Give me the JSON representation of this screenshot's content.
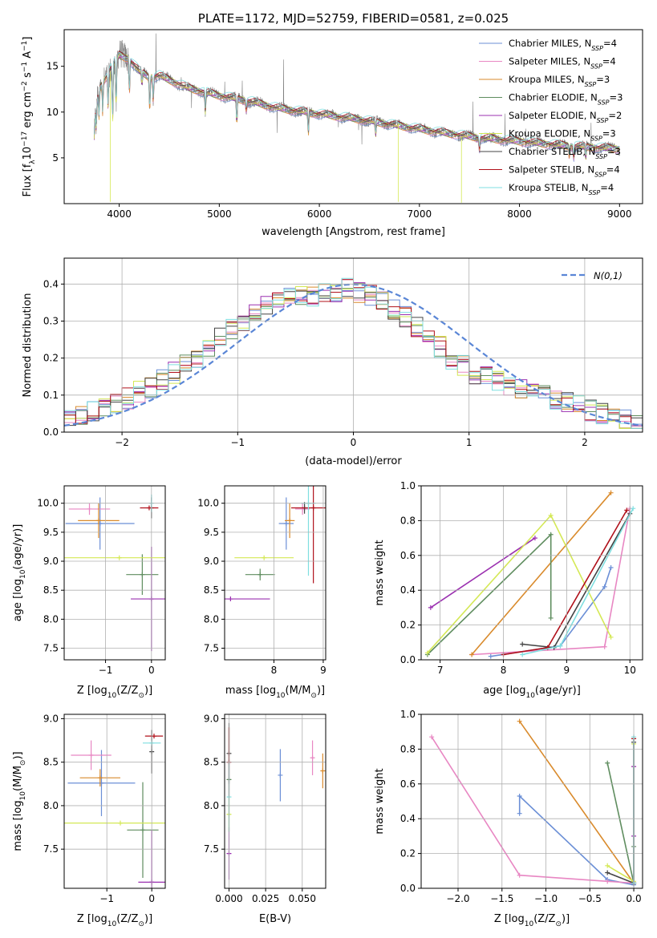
{
  "colors": [
    "#6b8fd6",
    "#e887c3",
    "#d98a2b",
    "#5f8d5f",
    "#9b30b0",
    "#d4e855",
    "#444444",
    "#b0101a",
    "#7fdfe0"
  ],
  "spectrum_color": "#808080",
  "normal_color": "#5a86d6",
  "chart_data": [
    {
      "id": "spectrum",
      "type": "line",
      "title": "PLATE=1172, MJD=52759, FIBERID=0581, z=0.025",
      "xlabel": "wavelength [Angstrom, rest frame]",
      "ylabel_parts": [
        "Flux [f",
        "λ",
        "10",
        "−17",
        " erg cm",
        "−2",
        " s",
        "−1",
        " A",
        "−1",
        "]"
      ],
      "xlim": [
        3450,
        9230
      ],
      "ylim": [
        0,
        19
      ],
      "xticks": [
        4000,
        5000,
        6000,
        7000,
        8000,
        9000
      ],
      "yticks": [
        5,
        10,
        15
      ],
      "legend_placement": "top-right",
      "legend": [
        {
          "text": "Chabrier MILES, N",
          "sub": "SSP",
          "suffix": "=4"
        },
        {
          "text": "Salpeter MILES, N",
          "sub": "SSP",
          "suffix": "=4"
        },
        {
          "text": "Kroupa MILES, N",
          "sub": "SSP",
          "suffix": "=3"
        },
        {
          "text": "Chabrier ELODIE, N",
          "sub": "SSP",
          "suffix": "=3"
        },
        {
          "text": "Salpeter ELODIE, N",
          "sub": "SSP",
          "suffix": "=2"
        },
        {
          "text": "Kroupa ELODIE, N",
          "sub": "SSP",
          "suffix": "=3"
        },
        {
          "text": "Chabrier STELIB, N",
          "sub": "SSP",
          "suffix": "=3"
        },
        {
          "text": "Salpeter STELIB, N",
          "sub": "SSP",
          "suffix": "=4"
        },
        {
          "text": "Kroupa STELIB, N",
          "sub": "SSP",
          "suffix": "=4"
        }
      ],
      "continuum": {
        "x": [
          3750,
          3800,
          3900,
          4000,
          4100,
          4200,
          4300,
          4400,
          4500,
          4700,
          5000,
          5300,
          5600,
          6000,
          6400,
          6800,
          7200,
          7600,
          8000,
          8400,
          8800,
          9000
        ],
        "y": [
          9.0,
          12.5,
          14.5,
          16.2,
          15.8,
          14.5,
          13.8,
          14.0,
          13.5,
          12.6,
          11.8,
          11.2,
          10.4,
          9.8,
          9.2,
          8.5,
          7.8,
          7.2,
          6.8,
          6.4,
          6.1,
          6.0
        ]
      },
      "absorption_lines": [
        {
          "x": 3750,
          "depth": 2.0
        },
        {
          "x": 3770,
          "depth": 2.5
        },
        {
          "x": 3798,
          "depth": 3.0
        },
        {
          "x": 3835,
          "depth": 3.5
        },
        {
          "x": 3889,
          "depth": 4.0
        },
        {
          "x": 3934,
          "depth": 7.0
        },
        {
          "x": 3969,
          "depth": 6.0
        },
        {
          "x": 4102,
          "depth": 4.0
        },
        {
          "x": 4227,
          "depth": 1.5
        },
        {
          "x": 4305,
          "depth": 4.0
        },
        {
          "x": 4340,
          "depth": 3.0
        },
        {
          "x": 4861,
          "depth": 2.5
        },
        {
          "x": 5175,
          "depth": 3.0
        },
        {
          "x": 5270,
          "depth": 1.2
        },
        {
          "x": 5890,
          "depth": 2.5
        },
        {
          "x": 6563,
          "depth": 1.5
        },
        {
          "x": 7600,
          "depth": 1.5
        },
        {
          "x": 8498,
          "depth": 1.2
        },
        {
          "x": 8542,
          "depth": 1.5
        },
        {
          "x": 8662,
          "depth": 1.3
        }
      ]
    },
    {
      "id": "residuals",
      "type": "bar",
      "xlabel": "(data-model)/error",
      "ylabel": "Normed distribution",
      "xlim": [
        -2.5,
        2.5
      ],
      "ylim": [
        0,
        0.47
      ],
      "xticks": [
        -2,
        -1,
        0,
        1,
        2
      ],
      "xtick_labels": [
        "−2",
        "−1",
        "0",
        "1",
        "2"
      ],
      "yticks": [
        0.0,
        0.1,
        0.2,
        0.3,
        0.4
      ],
      "ytick_labels": [
        "0.0",
        "0.1",
        "0.2",
        "0.3",
        "0.4"
      ],
      "bin_width": 0.1,
      "n_bins": 50,
      "base": [
        0.04,
        0.05,
        0.06,
        0.07,
        0.08,
        0.09,
        0.11,
        0.12,
        0.14,
        0.16,
        0.18,
        0.2,
        0.23,
        0.26,
        0.28,
        0.3,
        0.32,
        0.34,
        0.35,
        0.36,
        0.37,
        0.37,
        0.38,
        0.38,
        0.39,
        0.38,
        0.37,
        0.35,
        0.33,
        0.31,
        0.28,
        0.26,
        0.23,
        0.2,
        0.18,
        0.16,
        0.15,
        0.14,
        0.13,
        0.12,
        0.11,
        0.1,
        0.09,
        0.08,
        0.07,
        0.06,
        0.05,
        0.04,
        0.03,
        0.02
      ],
      "legend": "N(0,1)",
      "legend_placement": "top-right"
    },
    {
      "id": "age-vs-Z",
      "type": "scatter",
      "xlabel_parts": [
        "Z [log",
        "10",
        "(Z/Z",
        "⊙",
        ")]"
      ],
      "ylabel_parts": [
        "age  [log",
        "10",
        "(age/yr)]"
      ],
      "xlim": [
        -1.9,
        0.3
      ],
      "ylim": [
        7.3,
        10.3
      ],
      "xticks": [
        -1,
        0
      ],
      "xtick_labels": [
        "−1",
        "0"
      ],
      "yticks": [
        7.5,
        8.0,
        8.5,
        9.0,
        9.5,
        10.0
      ],
      "ytick_labels": [
        "7.5",
        "8.0",
        "8.5",
        "9.0",
        "9.5",
        "10.0"
      ],
      "points": [
        {
          "s": 0,
          "x": -1.12,
          "xerr": 0.75,
          "y": 9.65,
          "yerr": 0.45
        },
        {
          "s": 1,
          "x": -1.35,
          "xerr": 0.45,
          "y": 9.9,
          "yerr": 0.1
        },
        {
          "s": 2,
          "x": -1.15,
          "xerr": 0.45,
          "y": 9.7,
          "yerr": 0.3
        },
        {
          "s": 3,
          "x": -0.2,
          "xerr": 0.35,
          "y": 8.77,
          "yerr": 0.35
        },
        {
          "s": 4,
          "x": 0.0,
          "xerr": 0.45,
          "y": 8.35,
          "yerr": 0.9
        },
        {
          "s": 5,
          "x": -0.7,
          "xerr": 1.4,
          "y": 9.06,
          "yerr": 0.0
        },
        {
          "s": 6,
          "x": 0.0,
          "xerr": 0.0,
          "y": 9.92,
          "yerr": 0.18
        },
        {
          "s": 7,
          "x": -0.05,
          "xerr": 0.2,
          "y": 9.92,
          "yerr": 0.0
        },
        {
          "s": 8,
          "x": 0.0,
          "xerr": 0.0,
          "y": 10.0,
          "yerr": 0.15
        }
      ]
    },
    {
      "id": "age-vs-mass",
      "type": "scatter",
      "xlabel_parts": [
        "mass [log",
        "10",
        "(M/M",
        "⊙",
        ")]"
      ],
      "xlim": [
        7.0,
        9.05
      ],
      "ylim": [
        7.3,
        10.3
      ],
      "xticks": [
        8,
        9
      ],
      "xtick_labels": [
        "8",
        "9"
      ],
      "yticks": [
        7.5,
        8.0,
        8.5,
        9.0,
        9.5,
        10.0
      ],
      "ytick_labels": [
        "7.5",
        "8.0",
        "8.5",
        "9.0",
        "9.5",
        "10.0"
      ],
      "points": [
        {
          "s": 0,
          "x": 8.25,
          "xerr": 0.15,
          "y": 9.65,
          "yerr": 0.45
        },
        {
          "s": 1,
          "x": 8.58,
          "xerr": 0.15,
          "y": 9.9,
          "yerr": 0.1
        },
        {
          "s": 2,
          "x": 8.32,
          "xerr": 0.1,
          "y": 9.7,
          "yerr": 0.3
        },
        {
          "s": 3,
          "x": 7.72,
          "xerr": 0.3,
          "y": 8.77,
          "yerr": 0.1
        },
        {
          "s": 4,
          "x": 7.12,
          "xerr": 0.8,
          "y": 8.35,
          "yerr": 0.0
        },
        {
          "s": 5,
          "x": 7.8,
          "xerr": 0.6,
          "y": 9.06,
          "yerr": 0.0
        },
        {
          "s": 6,
          "x": 8.62,
          "xerr": 0.0,
          "y": 9.92,
          "yerr": 0.1
        },
        {
          "s": 7,
          "x": 8.8,
          "xerr": 0.45,
          "y": 9.92,
          "yerr": 1.3
        },
        {
          "s": 8,
          "x": 8.7,
          "xerr": 0.15,
          "y": 10.0,
          "yerr": 1.25
        }
      ]
    },
    {
      "id": "weight-vs-age",
      "type": "line",
      "xlabel_parts": [
        "age  [log",
        "10",
        "(age/yr)]"
      ],
      "ylabel": "mass weight",
      "xlim": [
        6.7,
        10.2
      ],
      "ylim": [
        0.0,
        1.0
      ],
      "xticks": [
        7,
        8,
        9,
        10
      ],
      "xtick_labels": [
        "7",
        "8",
        "9",
        "10"
      ],
      "yticks": [
        0.0,
        0.2,
        0.4,
        0.6,
        0.8,
        1.0
      ],
      "ytick_labels": [
        "0.0",
        "0.2",
        "0.4",
        "0.6",
        "0.8",
        "1.0"
      ],
      "series": [
        {
          "s": 0,
          "x": [
            7.8,
            8.9,
            9.6,
            9.7
          ],
          "y": [
            0.02,
            0.08,
            0.42,
            0.53
          ]
        },
        {
          "s": 1,
          "x": [
            7.5,
            9.6,
            10.0
          ],
          "y": [
            0.03,
            0.075,
            0.87
          ]
        },
        {
          "s": 2,
          "x": [
            7.5,
            9.7
          ],
          "y": [
            0.03,
            0.96
          ]
        },
        {
          "s": 3,
          "x": [
            6.8,
            8.75,
            8.75
          ],
          "y": [
            0.03,
            0.72,
            0.24
          ]
        },
        {
          "s": 4,
          "x": [
            6.85,
            8.5
          ],
          "y": [
            0.3,
            0.7
          ]
        },
        {
          "s": 5,
          "x": [
            6.8,
            8.75,
            9.7
          ],
          "y": [
            0.04,
            0.83,
            0.13
          ]
        },
        {
          "s": 6,
          "x": [
            8.3,
            8.8,
            10.0
          ],
          "y": [
            0.09,
            0.07,
            0.84
          ]
        },
        {
          "s": 7,
          "x": [
            8.0,
            8.7,
            9.95
          ],
          "y": [
            0.03,
            0.07,
            0.86
          ]
        },
        {
          "s": 8,
          "x": [
            8.3,
            8.9,
            10.05
          ],
          "y": [
            0.03,
            0.08,
            0.87
          ]
        }
      ]
    },
    {
      "id": "mass-vs-Z",
      "type": "scatter",
      "xlabel_parts": [
        "Z [log",
        "10",
        "(Z/Z",
        "⊙",
        ")]"
      ],
      "ylabel_parts": [
        "mass [log",
        "10",
        "(M/M",
        "⊙",
        ")]"
      ],
      "xlim": [
        -1.95,
        0.3
      ],
      "ylim": [
        7.05,
        9.05
      ],
      "xticks": [
        -1,
        0
      ],
      "xtick_labels": [
        "−1",
        "0"
      ],
      "yticks": [
        7.5,
        8.0,
        8.5,
        9.0
      ],
      "ytick_labels": [
        "7.5",
        "8.0",
        "8.5",
        "9.0"
      ],
      "points": [
        {
          "s": 0,
          "x": -1.12,
          "xerr": 0.75,
          "y": 8.26,
          "yerr": 0.38
        },
        {
          "s": 1,
          "x": -1.35,
          "xerr": 0.45,
          "y": 8.58,
          "yerr": 0.17
        },
        {
          "s": 2,
          "x": -1.15,
          "xerr": 0.45,
          "y": 8.32,
          "yerr": 0.1
        },
        {
          "s": 3,
          "x": -0.2,
          "xerr": 0.35,
          "y": 7.72,
          "yerr": 0.55
        },
        {
          "s": 4,
          "x": 0.0,
          "xerr": 0.3,
          "y": 7.12,
          "yerr": 0.6
        },
        {
          "s": 5,
          "x": -0.7,
          "xerr": 1.4,
          "y": 7.8,
          "yerr": 0.0
        },
        {
          "s": 6,
          "x": 0.0,
          "xerr": 0.0,
          "y": 8.62,
          "yerr": 0.25
        },
        {
          "s": 7,
          "x": 0.05,
          "xerr": 0.2,
          "y": 8.8,
          "yerr": 0.0
        },
        {
          "s": 8,
          "x": 0.0,
          "xerr": 0.2,
          "y": 8.72,
          "yerr": 0.0
        }
      ]
    },
    {
      "id": "mass-vs-EBV",
      "type": "scatter",
      "xlabel": "E(B-V)",
      "xlim": [
        -0.003,
        0.066
      ],
      "ylim": [
        7.05,
        9.05
      ],
      "xticks": [
        0.0,
        0.025,
        0.05
      ],
      "xtick_labels": [
        "0.000",
        "0.025",
        "0.050"
      ],
      "yticks": [
        7.5,
        8.0,
        8.5,
        9.0
      ],
      "ytick_labels": [
        "7.5",
        "8.0",
        "8.5",
        "9.0"
      ],
      "points": [
        {
          "s": 0,
          "x": 0.035,
          "xerr": 0.0,
          "y": 8.35,
          "yerr": 0.3
        },
        {
          "s": 1,
          "x": 0.057,
          "xerr": 0.0,
          "y": 8.55,
          "yerr": 0.2
        },
        {
          "s": 2,
          "x": 0.064,
          "xerr": 0.0,
          "y": 8.4,
          "yerr": 0.2
        },
        {
          "s": 3,
          "x": 0.0,
          "xerr": 0.0,
          "y": 8.3,
          "yerr": 0.6
        },
        {
          "s": 4,
          "x": 0.0,
          "xerr": 0.0,
          "y": 7.45,
          "yerr": 0.3
        },
        {
          "s": 5,
          "x": 0.0,
          "xerr": 0.0,
          "y": 7.9,
          "yerr": 0.2
        },
        {
          "s": 6,
          "x": 0.0,
          "xerr": 0.0,
          "y": 8.6,
          "yerr": 0.35
        },
        {
          "s": 7,
          "x": 0.0,
          "xerr": 0.0,
          "y": 8.5,
          "yerr": 0.4
        },
        {
          "s": 8,
          "x": 0.0,
          "xerr": 0.0,
          "y": 8.1,
          "yerr": 0.4
        }
      ]
    },
    {
      "id": "weight-vs-Z",
      "type": "line",
      "xlabel_parts": [
        "Z [log",
        "10",
        "(Z/Z",
        "⊙",
        ")]"
      ],
      "ylabel": "mass weight",
      "xlim": [
        -2.42,
        0.1
      ],
      "ylim": [
        0.0,
        1.0
      ],
      "xticks": [
        -2.0,
        -1.5,
        -1.0,
        -0.5,
        0.0
      ],
      "xtick_labels": [
        "−2.0",
        "−1.5",
        "−1.0",
        "−0.5",
        "0.0"
      ],
      "yticks": [
        0.0,
        0.2,
        0.4,
        0.6,
        0.8,
        1.0
      ],
      "ytick_labels": [
        "0.0",
        "0.2",
        "0.4",
        "0.6",
        "0.8",
        "1.0"
      ],
      "series": [
        {
          "s": 0,
          "x": [
            -1.3,
            -1.3,
            -0.3,
            0.0
          ],
          "y": [
            0.43,
            0.53,
            0.05,
            0.02
          ]
        },
        {
          "s": 1,
          "x": [
            -2.3,
            -1.3,
            -0.3,
            0.0,
            0.0
          ],
          "y": [
            0.87,
            0.075,
            0.04,
            0.03,
            0.7
          ]
        },
        {
          "s": 2,
          "x": [
            -1.3,
            0.0
          ],
          "y": [
            0.96,
            0.03
          ]
        },
        {
          "s": 3,
          "x": [
            -0.3,
            0.0,
            0.0
          ],
          "y": [
            0.72,
            0.03,
            0.24
          ]
        },
        {
          "s": 4,
          "x": [
            0.0,
            0.0
          ],
          "y": [
            0.3,
            0.7
          ]
        },
        {
          "s": 5,
          "x": [
            -0.3,
            0.0,
            0.0
          ],
          "y": [
            0.13,
            0.04,
            0.83
          ]
        },
        {
          "s": 6,
          "x": [
            -0.3,
            0.0,
            0.0
          ],
          "y": [
            0.09,
            0.03,
            0.84
          ]
        },
        {
          "s": 7,
          "x": [
            0.0,
            0.0
          ],
          "y": [
            0.03,
            0.86
          ]
        },
        {
          "s": 8,
          "x": [
            0.0,
            0.0
          ],
          "y": [
            0.03,
            0.87
          ]
        }
      ]
    }
  ]
}
